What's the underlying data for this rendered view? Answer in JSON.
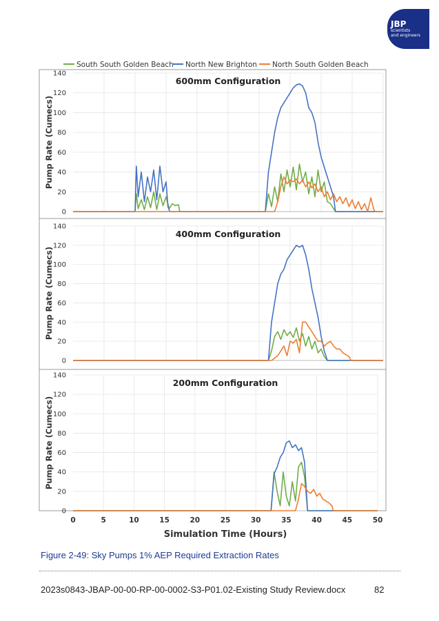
{
  "logo": {
    "text": "JBP",
    "subline1": "scientists",
    "subline2": "and engineers"
  },
  "legend": [
    {
      "name": "South South Golden Beach",
      "color": "#70ad47"
    },
    {
      "name": "North New Brighton",
      "color": "#4472c4"
    },
    {
      "name": "North South Golden Beach",
      "color": "#ed7d31"
    }
  ],
  "chart_data": [
    {
      "type": "line",
      "title": "600mm Configuration",
      "ylabel": "Pump Rate (Cumecs)",
      "xlabel": "",
      "xlim": [
        0,
        50
      ],
      "ylim": [
        0,
        140
      ],
      "yticks": [
        0,
        20,
        40,
        60,
        80,
        100,
        120,
        140
      ],
      "xticks": [],
      "grid": true,
      "series": [
        {
          "name": "South South Golden Beach",
          "color": "#70ad47",
          "x": [
            0,
            10,
            10.2,
            10.5,
            11,
            11.5,
            12,
            12.5,
            13,
            13.5,
            14,
            14.5,
            15,
            15.5,
            16,
            16.5,
            17,
            17.2,
            31,
            31.5,
            32,
            32.5,
            33,
            33.5,
            34,
            34.5,
            35,
            35.5,
            36,
            36.5,
            37,
            37.5,
            38,
            38.5,
            39,
            39.5,
            40,
            40.5,
            41,
            41.5,
            42,
            42.3,
            50
          ],
          "y": [
            0,
            0,
            18,
            3,
            12,
            2,
            15,
            4,
            20,
            2,
            18,
            6,
            15,
            3,
            8,
            6,
            7,
            0,
            0,
            18,
            5,
            25,
            10,
            38,
            20,
            42,
            25,
            45,
            22,
            48,
            30,
            40,
            18,
            35,
            15,
            42,
            20,
            30,
            10,
            8,
            3,
            0,
            0
          ]
        },
        {
          "name": "North New Brighton",
          "color": "#4472c4",
          "x": [
            0,
            10,
            10.2,
            10.5,
            11,
            11.5,
            12,
            12.5,
            13,
            13.5,
            14,
            14.5,
            15,
            15.3,
            15.6,
            31,
            31.5,
            32,
            32.5,
            33,
            33.5,
            34,
            34.5,
            35,
            35.5,
            36,
            36.5,
            37,
            37.5,
            38,
            38.5,
            39,
            39.5,
            40,
            40.5,
            41,
            41.5,
            42,
            42.3,
            50
          ],
          "y": [
            0,
            0,
            46,
            15,
            40,
            10,
            35,
            20,
            42,
            12,
            46,
            20,
            30,
            5,
            0,
            0,
            40,
            60,
            80,
            95,
            105,
            110,
            115,
            120,
            125,
            128,
            129,
            127,
            120,
            105,
            100,
            90,
            70,
            55,
            45,
            35,
            25,
            15,
            0,
            0
          ]
        },
        {
          "name": "North South Golden Beach",
          "color": "#ed7d31",
          "x": [
            0,
            32.5,
            33,
            33.5,
            34,
            34.5,
            35,
            35.5,
            36,
            36.5,
            37,
            37.5,
            38,
            38.5,
            39,
            39.5,
            40,
            40.5,
            41,
            41.5,
            42,
            42.5,
            43,
            43.5,
            44,
            44.5,
            45,
            45.5,
            46,
            46.5,
            47,
            47.5,
            48,
            48.5,
            48.7,
            50
          ],
          "y": [
            0,
            0,
            10,
            25,
            35,
            28,
            32,
            30,
            33,
            28,
            32,
            25,
            30,
            24,
            28,
            20,
            25,
            15,
            20,
            12,
            18,
            10,
            15,
            8,
            14,
            5,
            12,
            3,
            10,
            2,
            8,
            0,
            14,
            2,
            0,
            0
          ]
        }
      ]
    },
    {
      "type": "line",
      "title": "400mm Configuration",
      "ylabel": "Pump Rate (Cumecs)",
      "xlabel": "",
      "xlim": [
        0,
        50
      ],
      "ylim": [
        0,
        140
      ],
      "yticks": [
        0,
        20,
        40,
        60,
        80,
        100,
        120,
        140
      ],
      "xticks": [],
      "grid": true,
      "series": [
        {
          "name": "South South Golden Beach",
          "color": "#70ad47",
          "x": [
            0,
            31.5,
            32,
            32.5,
            33,
            33.5,
            34,
            34.5,
            35,
            35.5,
            36,
            36.5,
            37,
            37.5,
            38,
            38.5,
            39,
            39.5,
            40,
            40.5,
            41,
            50
          ],
          "y": [
            0,
            0,
            10,
            25,
            30,
            22,
            32,
            26,
            30,
            24,
            34,
            20,
            28,
            15,
            25,
            12,
            20,
            8,
            12,
            4,
            0,
            0
          ]
        },
        {
          "name": "North New Brighton",
          "color": "#4472c4",
          "x": [
            0,
            31.5,
            32,
            32.5,
            33,
            33.5,
            34,
            34.5,
            35,
            35.5,
            36,
            36.5,
            37,
            37.5,
            38,
            38.5,
            39,
            39.5,
            40,
            40.5,
            41,
            50
          ],
          "y": [
            0,
            0,
            40,
            60,
            80,
            90,
            95,
            105,
            110,
            115,
            120,
            118,
            120,
            110,
            95,
            75,
            60,
            45,
            25,
            10,
            0,
            0
          ]
        },
        {
          "name": "North South Golden Beach",
          "color": "#ed7d31",
          "x": [
            0,
            32,
            33,
            34,
            34.5,
            35,
            35.5,
            36,
            36.5,
            37,
            37.5,
            38,
            38.5,
            39,
            39.5,
            40,
            40.5,
            41,
            41.5,
            42,
            42.5,
            43,
            43.5,
            44,
            44.5,
            44.8,
            50
          ],
          "y": [
            0,
            0,
            5,
            15,
            5,
            20,
            18,
            22,
            8,
            40,
            40,
            35,
            30,
            25,
            20,
            20,
            15,
            18,
            20,
            15,
            12,
            12,
            8,
            6,
            4,
            0,
            0
          ]
        }
      ]
    },
    {
      "type": "line",
      "title": "200mm Configuration",
      "ylabel": "Pump Rate (Cumecs)",
      "xlabel": "Simulation Time (Hours)",
      "xlim": [
        0,
        50
      ],
      "ylim": [
        0,
        140
      ],
      "yticks": [
        0,
        20,
        40,
        60,
        80,
        100,
        120,
        140
      ],
      "xticks": [
        0,
        5,
        10,
        15,
        20,
        25,
        30,
        35,
        40,
        45,
        50
      ],
      "grid": true,
      "series": [
        {
          "name": "South South Golden Beach",
          "color": "#70ad47",
          "x": [
            0,
            32.5,
            33,
            33.5,
            34,
            34.5,
            35,
            35.5,
            36,
            36.5,
            37,
            37.5,
            38,
            38.5,
            50
          ],
          "y": [
            0,
            0,
            40,
            20,
            5,
            40,
            15,
            5,
            30,
            10,
            45,
            50,
            35,
            0,
            0
          ]
        },
        {
          "name": "North New Brighton",
          "color": "#4472c4",
          "x": [
            0,
            32.5,
            33,
            33.5,
            34,
            34.5,
            35,
            35.5,
            36,
            36.5,
            37,
            37.5,
            38,
            38.5,
            50
          ],
          "y": [
            0,
            0,
            38,
            45,
            55,
            60,
            70,
            72,
            65,
            68,
            62,
            65,
            50,
            0,
            0
          ]
        },
        {
          "name": "North South Golden Beach",
          "color": "#ed7d31",
          "x": [
            0,
            36.5,
            37,
            37.5,
            38,
            38.5,
            39,
            39.5,
            40,
            40.5,
            41,
            41.5,
            42,
            42.5,
            42.7,
            50
          ],
          "y": [
            0,
            0,
            12,
            28,
            25,
            20,
            18,
            22,
            15,
            18,
            12,
            10,
            8,
            5,
            0,
            0
          ]
        }
      ]
    }
  ],
  "caption": "Figure 2-49: Sky Pumps 1% AEP Required Extraction Rates",
  "footer": {
    "document": "2023s0843-JBAP-00-00-RP-00-0002-S3-P01.02-Existing Study Review.docx",
    "page": "82"
  }
}
